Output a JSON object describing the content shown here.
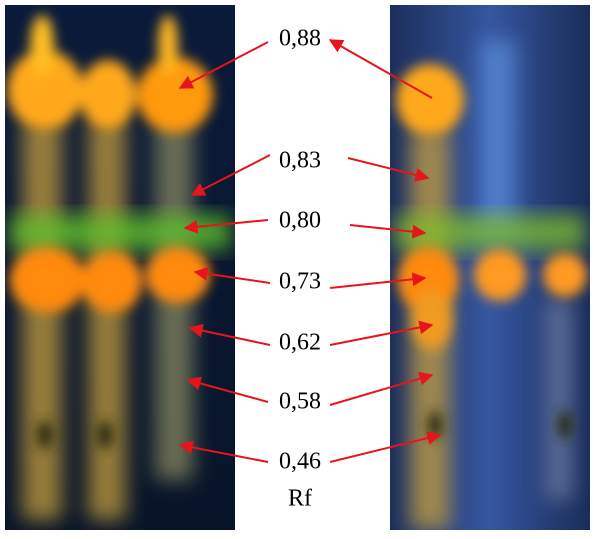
{
  "labels": [
    "0,88",
    "0,83",
    "0,80",
    "0,73",
    "0,62",
    "0,58",
    "0,46"
  ],
  "axis_label": "Rf"
}
